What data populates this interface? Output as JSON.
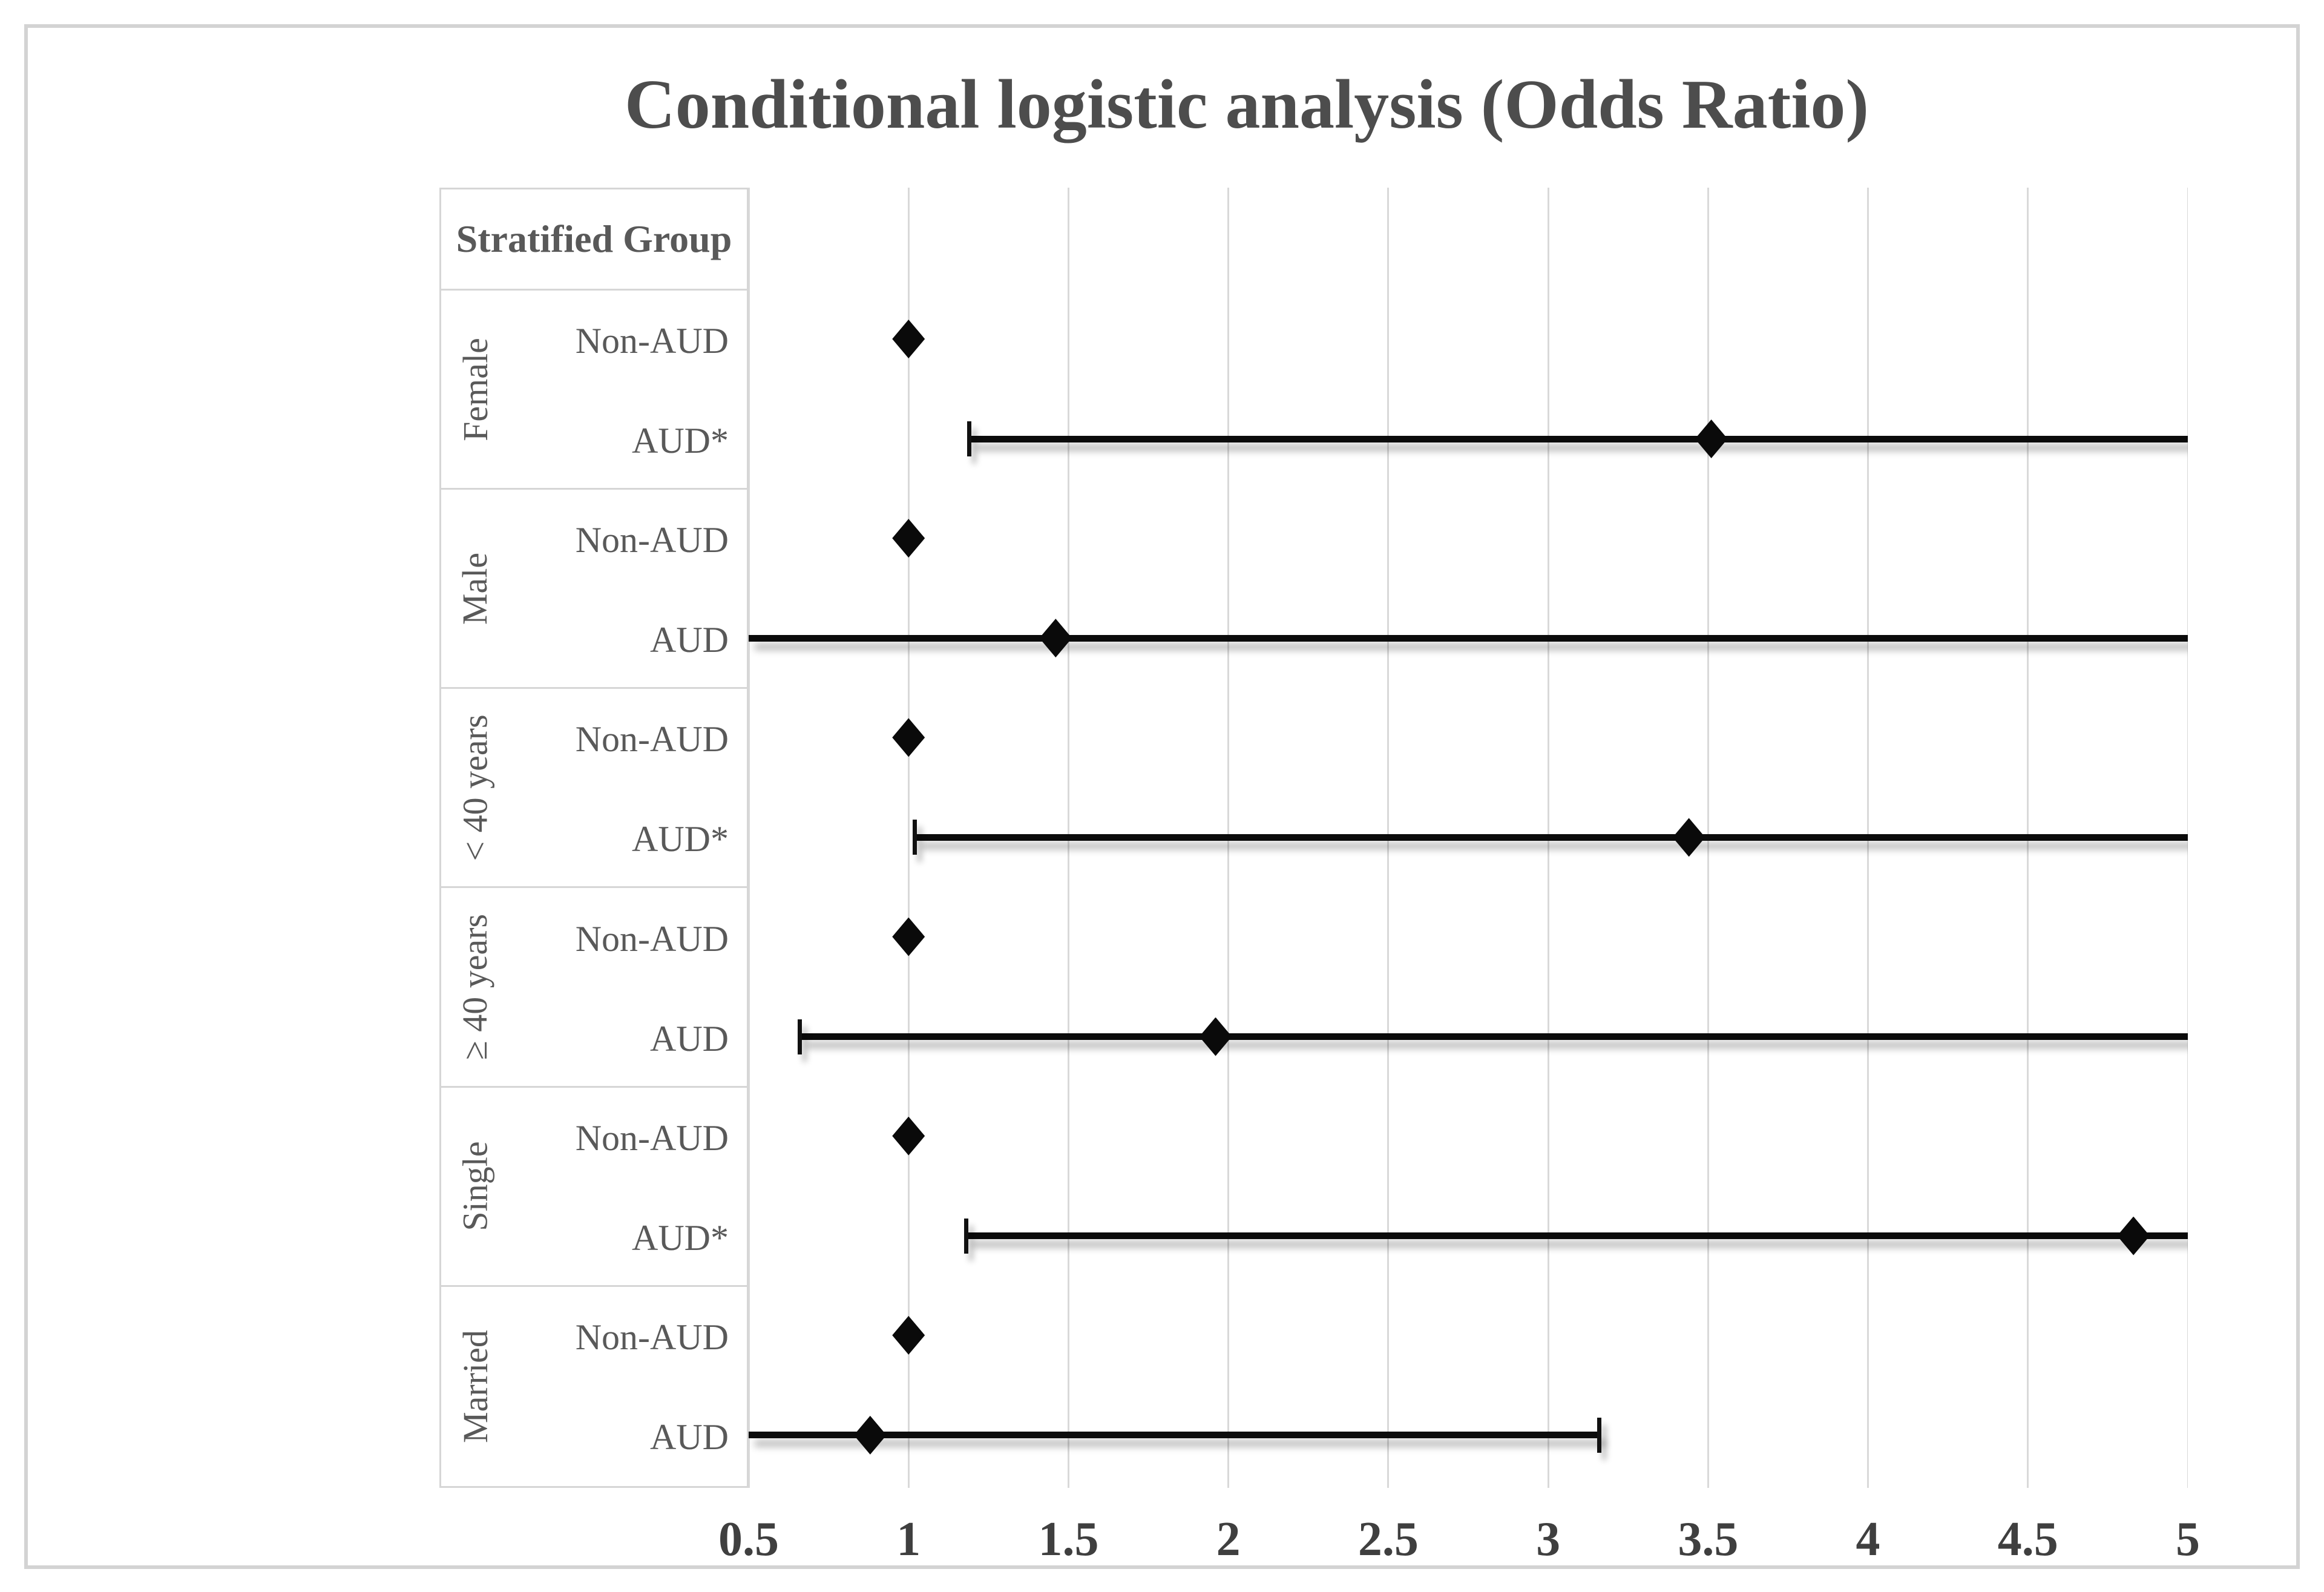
{
  "figure": {
    "title": "Conditional logistic analysis (Odds Ratio)"
  },
  "chart_data": {
    "type": "scatter",
    "subtype": "forest-plot",
    "title": "Conditional logistic analysis (Odds Ratio)",
    "xlabel": "",
    "ylabel": "",
    "x_range": [
      0.5,
      5
    ],
    "x_ticks": [
      "0.5",
      "1",
      "1.5",
      "2",
      "2.5",
      "3",
      "3.5",
      "4",
      "4.5",
      "5"
    ],
    "grid": "vertical",
    "legend": "none",
    "table_header": "Stratified Group",
    "marker": "black-diamond",
    "colors": {
      "marker": "#0a0a0a",
      "ci_line": "#0b0b0b",
      "gridline": "#d9d9d9",
      "table_border": "#d6d6d6",
      "text": "#595959",
      "title_text": "#4d4d4d",
      "tick_text": "#3f3f3f"
    },
    "groups": [
      {
        "label": "Female",
        "rows": [
          {
            "label": "Non-AUD",
            "or": 1.0,
            "reference": true
          },
          {
            "label": "AUD*",
            "or": 3.51,
            "ci_low": 1.19,
            "ci_high": 5.0,
            "ci_low_clipped": false,
            "ci_high_clipped": true
          }
        ]
      },
      {
        "label": "Male",
        "rows": [
          {
            "label": "Non-AUD",
            "or": 1.0,
            "reference": true
          },
          {
            "label": "AUD",
            "or": 1.46,
            "ci_low": 0.5,
            "ci_high": 5.0,
            "ci_low_clipped": true,
            "ci_high_clipped": true
          }
        ]
      },
      {
        "label": "< 40 years",
        "rows": [
          {
            "label": "Non-AUD",
            "or": 1.0,
            "reference": true
          },
          {
            "label": "AUD*",
            "or": 3.44,
            "ci_low": 1.02,
            "ci_high": 5.0,
            "ci_low_clipped": false,
            "ci_high_clipped": true
          }
        ]
      },
      {
        "label": "≥ 40 years",
        "rows": [
          {
            "label": "Non-AUD",
            "or": 1.0,
            "reference": true
          },
          {
            "label": "AUD",
            "or": 1.96,
            "ci_low": 0.66,
            "ci_high": 5.0,
            "ci_low_clipped": false,
            "ci_high_clipped": true
          }
        ]
      },
      {
        "label": "Single",
        "rows": [
          {
            "label": "Non-AUD",
            "or": 1.0,
            "reference": true
          },
          {
            "label": "AUD*",
            "or": 4.83,
            "ci_low": 1.18,
            "ci_high": 5.0,
            "ci_low_clipped": false,
            "ci_high_clipped": true
          }
        ]
      },
      {
        "label": "Married",
        "rows": [
          {
            "label": "Non-AUD",
            "or": 1.0,
            "reference": true
          },
          {
            "label": "AUD",
            "or": 0.88,
            "ci_low": 0.5,
            "ci_high": 3.16,
            "ci_low_clipped": true,
            "ci_high_clipped": false
          }
        ]
      }
    ]
  }
}
